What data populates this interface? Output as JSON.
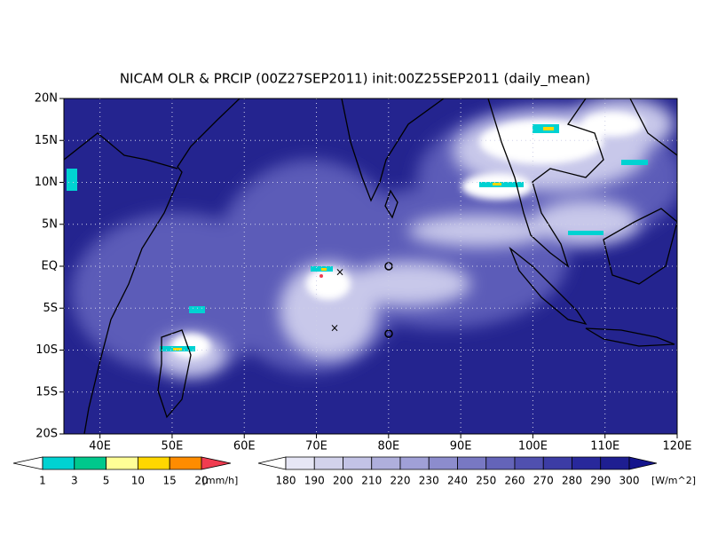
{
  "title": "NICAM OLR & PRCIP (00Z27SEP2011) init:00Z25SEP2011 (daily_mean)",
  "map": {
    "xlim": [
      35,
      120
    ],
    "ylim": [
      -20,
      20
    ],
    "grid": true,
    "xticks": [
      {
        "value": 40,
        "label": "40E"
      },
      {
        "value": 50,
        "label": "50E"
      },
      {
        "value": 60,
        "label": "60E"
      },
      {
        "value": 70,
        "label": "70E"
      },
      {
        "value": 80,
        "label": "80E"
      },
      {
        "value": 90,
        "label": "90E"
      },
      {
        "value": 100,
        "label": "100E"
      },
      {
        "value": 110,
        "label": "110E"
      },
      {
        "value": 120,
        "label": "120E"
      }
    ],
    "yticks": [
      {
        "value": 20,
        "label": "20N"
      },
      {
        "value": 15,
        "label": "15N"
      },
      {
        "value": 10,
        "label": "10N"
      },
      {
        "value": 5,
        "label": "5N"
      },
      {
        "value": 0,
        "label": "EQ"
      },
      {
        "value": -5,
        "label": "5S"
      },
      {
        "value": -10,
        "label": "10S"
      },
      {
        "value": -15,
        "label": "15S"
      },
      {
        "value": -20,
        "label": "20S"
      }
    ]
  },
  "precip_colorbar": {
    "labels": [
      "1",
      "3",
      "5",
      "10",
      "15",
      "20"
    ],
    "unit": "[mm/h]",
    "colors": [
      "#ffffff",
      "#00d2d2",
      "#00c88c",
      "#ffff96",
      "#ffd700",
      "#ff8c00",
      "#f03c50"
    ]
  },
  "olr_colorbar": {
    "labels": [
      "180",
      "190",
      "200",
      "210",
      "220",
      "230",
      "240",
      "250",
      "260",
      "270",
      "280",
      "290",
      "300"
    ],
    "unit": "[W/m^2]",
    "colors": [
      "#ffffff",
      "#e6e6f5",
      "#d2d2eb",
      "#c3c3e6",
      "#afafdc",
      "#a0a0d7",
      "#8c8ccd",
      "#7878c3",
      "#6464b9",
      "#5050af",
      "#3c3ca5",
      "#28289b",
      "#1e1e91",
      "#14148c"
    ]
  }
}
